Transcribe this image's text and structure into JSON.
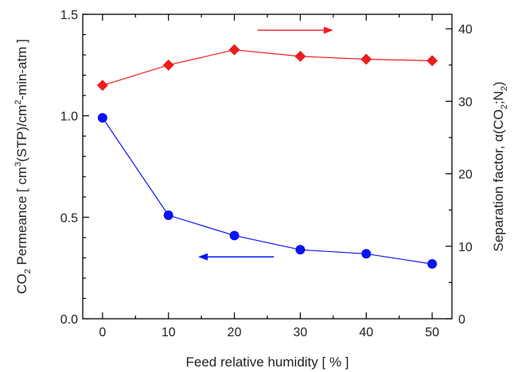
{
  "chart_data": {
    "type": "line",
    "x": [
      0,
      10,
      20,
      30,
      40,
      50
    ],
    "xlim": [
      -3,
      53
    ],
    "xticks": [
      "0",
      "10",
      "20",
      "30",
      "40",
      "50"
    ],
    "xlabel": "Feed relative humidity [ % ]",
    "ylabel_left": {
      "co2": "CO",
      "co2_sub": "2",
      "permeance": " Permeance [ cm",
      "cm3_sup": "3",
      "stp": "(STP)/cm",
      "cm2_sup": "2",
      "rest": "-min-atm ]"
    },
    "ylabel_right": {
      "main": "Separation factor, α(CO",
      "co2_sub": "2",
      "mid": ";N",
      "n2_sub": "2",
      "end": ")"
    },
    "ylim_left": [
      0,
      1.5
    ],
    "ylim_right": [
      0,
      42
    ],
    "yticks_left": [
      "0.0",
      "0.5",
      "1.0",
      "1.5"
    ],
    "yticks_right": [
      "0",
      "10",
      "20",
      "30",
      "40"
    ],
    "grid": false,
    "series": [
      {
        "axis": "left",
        "values": [
          0.99,
          0.51,
          0.41,
          0.34,
          0.32,
          0.27
        ],
        "color": "#0a14f0",
        "marker": "circle"
      },
      {
        "axis": "right",
        "values": [
          32.2,
          35.0,
          37.1,
          36.2,
          35.8,
          35.6
        ],
        "color": "#ee1c1c",
        "marker": "diamond"
      }
    ],
    "annotations": [
      {
        "type": "arrow",
        "direction": "right",
        "color": "#ee1c1c",
        "meaning": "right-axis series"
      },
      {
        "type": "arrow",
        "direction": "left",
        "color": "#0a14f0",
        "meaning": "left-axis series"
      }
    ]
  }
}
